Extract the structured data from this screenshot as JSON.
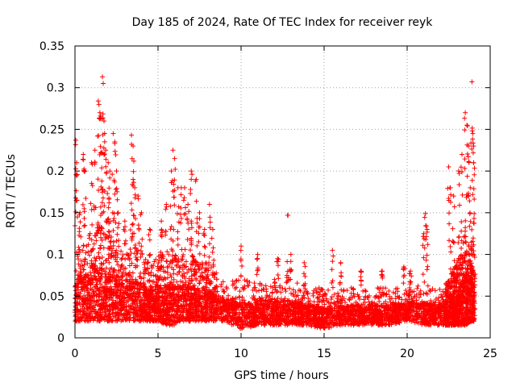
{
  "chart_data": {
    "type": "scatter",
    "title": "Day 185 of 2024, Rate Of TEC Index for receiver reyk",
    "xlabel": "GPS time / hours",
    "ylabel": "ROTI / TECUs",
    "xlim": [
      0,
      25
    ],
    "ylim": [
      0,
      0.35
    ],
    "grid": true,
    "marker": "+",
    "series_color": "#ff0000",
    "x_ticks": [
      0,
      5,
      10,
      15,
      20,
      25
    ],
    "x_tick_labels": [
      "0",
      "5",
      "10",
      "15",
      "20",
      "25"
    ],
    "y_ticks": [
      0,
      0.05,
      0.1,
      0.15,
      0.2,
      0.25,
      0.3,
      0.35
    ],
    "y_tick_labels": [
      "0",
      "0.05",
      "0.1",
      "0.15",
      "0.2",
      "0.25",
      "0.3",
      "0.35"
    ],
    "envelope": {
      "x": [
        0,
        0.3,
        0.6,
        1.0,
        1.5,
        2.0,
        2.5,
        3.0,
        3.5,
        4.0,
        4.5,
        5.0,
        5.5,
        6.0,
        6.5,
        7.0,
        7.5,
        8.0,
        8.5,
        9.0,
        9.5,
        10.0,
        11.0,
        12.0,
        13.0,
        14.0,
        15.0,
        16.0,
        17.0,
        18.0,
        19.0,
        20.0,
        21.0,
        22.0,
        22.5,
        23.0,
        23.5,
        24.0
      ],
      "low": [
        0.02,
        0.02,
        0.02,
        0.02,
        0.02,
        0.02,
        0.02,
        0.02,
        0.02,
        0.02,
        0.02,
        0.02,
        0.015,
        0.015,
        0.02,
        0.02,
        0.02,
        0.02,
        0.02,
        0.02,
        0.015,
        0.01,
        0.015,
        0.015,
        0.015,
        0.015,
        0.01,
        0.015,
        0.015,
        0.015,
        0.015,
        0.02,
        0.015,
        0.015,
        0.015,
        0.015,
        0.015,
        0.02
      ],
      "high": [
        0.1,
        0.12,
        0.12,
        0.13,
        0.14,
        0.13,
        0.11,
        0.1,
        0.11,
        0.1,
        0.09,
        0.1,
        0.1,
        0.1,
        0.1,
        0.1,
        0.09,
        0.09,
        0.08,
        0.07,
        0.07,
        0.07,
        0.07,
        0.07,
        0.07,
        0.06,
        0.06,
        0.06,
        0.06,
        0.06,
        0.06,
        0.06,
        0.065,
        0.06,
        0.07,
        0.09,
        0.13,
        0.1
      ]
    },
    "spikes": [
      {
        "x": 0.05,
        "y": 0.237
      },
      {
        "x": 0.1,
        "y": 0.21
      },
      {
        "x": 0.3,
        "y": 0.15
      },
      {
        "x": 0.5,
        "y": 0.22
      },
      {
        "x": 0.6,
        "y": 0.2
      },
      {
        "x": 1.0,
        "y": 0.21
      },
      {
        "x": 1.2,
        "y": 0.225
      },
      {
        "x": 1.4,
        "y": 0.284
      },
      {
        "x": 1.5,
        "y": 0.27
      },
      {
        "x": 1.6,
        "y": 0.263
      },
      {
        "x": 1.65,
        "y": 0.313
      },
      {
        "x": 1.7,
        "y": 0.305
      },
      {
        "x": 1.75,
        "y": 0.26
      },
      {
        "x": 1.85,
        "y": 0.225
      },
      {
        "x": 2.0,
        "y": 0.21
      },
      {
        "x": 2.1,
        "y": 0.2
      },
      {
        "x": 2.3,
        "y": 0.245
      },
      {
        "x": 2.4,
        "y": 0.235
      },
      {
        "x": 2.5,
        "y": 0.2
      },
      {
        "x": 2.6,
        "y": 0.15
      },
      {
        "x": 3.0,
        "y": 0.14
      },
      {
        "x": 3.4,
        "y": 0.243
      },
      {
        "x": 3.5,
        "y": 0.23
      },
      {
        "x": 3.5,
        "y": 0.19
      },
      {
        "x": 3.6,
        "y": 0.18
      },
      {
        "x": 3.8,
        "y": 0.17
      },
      {
        "x": 4.0,
        "y": 0.15
      },
      {
        "x": 4.5,
        "y": 0.13
      },
      {
        "x": 5.2,
        "y": 0.14
      },
      {
        "x": 5.5,
        "y": 0.16
      },
      {
        "x": 5.8,
        "y": 0.2
      },
      {
        "x": 5.9,
        "y": 0.225
      },
      {
        "x": 6.0,
        "y": 0.215
      },
      {
        "x": 6.2,
        "y": 0.18
      },
      {
        "x": 6.4,
        "y": 0.18
      },
      {
        "x": 6.6,
        "y": 0.18
      },
      {
        "x": 6.8,
        "y": 0.16
      },
      {
        "x": 7.0,
        "y": 0.14
      },
      {
        "x": 7.0,
        "y": 0.2
      },
      {
        "x": 7.3,
        "y": 0.19
      },
      {
        "x": 7.5,
        "y": 0.15
      },
      {
        "x": 7.8,
        "y": 0.13
      },
      {
        "x": 8.1,
        "y": 0.16
      },
      {
        "x": 8.3,
        "y": 0.13
      },
      {
        "x": 10.0,
        "y": 0.11
      },
      {
        "x": 11.0,
        "y": 0.1
      },
      {
        "x": 12.2,
        "y": 0.095
      },
      {
        "x": 12.8,
        "y": 0.147
      },
      {
        "x": 13.0,
        "y": 0.1
      },
      {
        "x": 13.8,
        "y": 0.09
      },
      {
        "x": 15.5,
        "y": 0.105
      },
      {
        "x": 16.0,
        "y": 0.09
      },
      {
        "x": 17.2,
        "y": 0.08
      },
      {
        "x": 18.5,
        "y": 0.08
      },
      {
        "x": 19.8,
        "y": 0.085
      },
      {
        "x": 20.2,
        "y": 0.08
      },
      {
        "x": 21.0,
        "y": 0.125
      },
      {
        "x": 21.1,
        "y": 0.149
      },
      {
        "x": 21.2,
        "y": 0.13
      },
      {
        "x": 22.5,
        "y": 0.205
      },
      {
        "x": 22.6,
        "y": 0.18
      },
      {
        "x": 22.8,
        "y": 0.17
      },
      {
        "x": 23.1,
        "y": 0.2
      },
      {
        "x": 23.3,
        "y": 0.22
      },
      {
        "x": 23.5,
        "y": 0.27
      },
      {
        "x": 23.6,
        "y": 0.255
      },
      {
        "x": 23.7,
        "y": 0.23
      },
      {
        "x": 23.8,
        "y": 0.18
      },
      {
        "x": 23.9,
        "y": 0.307
      },
      {
        "x": 23.95,
        "y": 0.245
      },
      {
        "x": 24.0,
        "y": 0.23
      },
      {
        "x": 24.0,
        "y": 0.21
      }
    ]
  }
}
